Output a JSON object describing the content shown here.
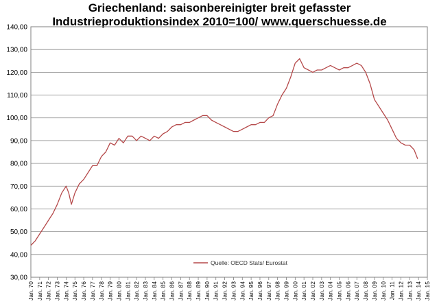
{
  "chart_data": {
    "type": "line",
    "title": [
      "Griechenland: saisonbereinigter  breit gefasster",
      "Industrieproduktionsindex  2010=100/  www.querschuesse.de"
    ],
    "ylim": [
      30,
      140
    ],
    "y_ticks": [
      "30,00",
      "40,00",
      "50,00",
      "60,00",
      "70,00",
      "80,00",
      "90,00",
      "100,00",
      "110,00",
      "120,00",
      "130,00",
      "140,00"
    ],
    "x_ticks": [
      "Jan. 70",
      "Jan. 71",
      "Jan. 72",
      "Jan. 73",
      "Jan. 74",
      "Jan. 75",
      "Jan. 76",
      "Jan. 77",
      "Jan. 78",
      "Jan. 79",
      "Jan. 80",
      "Jan. 81",
      "Jan. 82",
      "Jan. 83",
      "Jan. 84",
      "Jan. 85",
      "Jan. 86",
      "Jan. 87",
      "Jan. 88",
      "Jan. 89",
      "Jan. 90",
      "Jan. 91",
      "Jan. 92",
      "Jan. 93",
      "Jan. 94",
      "Jan. 95",
      "Jan. 96",
      "Jan. 97",
      "Jan. 98",
      "Jan. 99",
      "Jan. 00",
      "Jan. 01",
      "Jan. 02",
      "Jan. 03",
      "Jan. 04",
      "Jan. 05",
      "Jan. 06",
      "Jan. 07",
      "Jan. 08",
      "Jan. 09",
      "Jan. 10",
      "Jan. 11",
      "Jan. 12",
      "Jan. 13",
      "Jan. 14",
      "Jan. 15"
    ],
    "grid": true,
    "legend_placement": "bottom-center",
    "series": [
      {
        "name": "Quelle: OECD Stats/ Eurostat",
        "color": "#b5494a",
        "x": [
          1970.0,
          1970.5,
          1971.0,
          1971.5,
          1972.0,
          1972.5,
          1973.0,
          1973.5,
          1974.0,
          1974.3,
          1974.6,
          1975.0,
          1975.5,
          1976.0,
          1976.5,
          1977.0,
          1977.5,
          1978.0,
          1978.5,
          1979.0,
          1979.5,
          1980.0,
          1980.5,
          1981.0,
          1981.5,
          1982.0,
          1982.5,
          1983.0,
          1983.5,
          1984.0,
          1984.5,
          1985.0,
          1985.5,
          1986.0,
          1986.5,
          1987.0,
          1987.5,
          1988.0,
          1988.5,
          1989.0,
          1989.5,
          1990.0,
          1990.5,
          1991.0,
          1991.5,
          1992.0,
          1992.5,
          1993.0,
          1993.5,
          1994.0,
          1994.5,
          1995.0,
          1995.5,
          1996.0,
          1996.5,
          1997.0,
          1997.5,
          1998.0,
          1998.5,
          1999.0,
          1999.5,
          2000.0,
          2000.5,
          2001.0,
          2001.5,
          2002.0,
          2002.5,
          2003.0,
          2003.5,
          2004.0,
          2004.5,
          2005.0,
          2005.5,
          2006.0,
          2006.5,
          2007.0,
          2007.5,
          2008.0,
          2008.5,
          2009.0,
          2009.5,
          2010.0,
          2010.5,
          2011.0,
          2011.5,
          2012.0,
          2012.5,
          2013.0,
          2013.5,
          2013.9
        ],
        "values": [
          44,
          46,
          49,
          52,
          55,
          58,
          62,
          67,
          70,
          67,
          62,
          67,
          71,
          73,
          76,
          79,
          79,
          83,
          85,
          89,
          88,
          91,
          89,
          92,
          92,
          90,
          92,
          91,
          90,
          92,
          91,
          93,
          94,
          96,
          97,
          97,
          98,
          98,
          99,
          100,
          101,
          101,
          99,
          98,
          97,
          96,
          95,
          94,
          94,
          95,
          96,
          97,
          97,
          98,
          98,
          100,
          101,
          106,
          110,
          113,
          118,
          124,
          126,
          122,
          121,
          120,
          121,
          121,
          122,
          123,
          122,
          121,
          122,
          122,
          123,
          124,
          123,
          120,
          115,
          108,
          105,
          102,
          99,
          95,
          91,
          89,
          88,
          88,
          86,
          82
        ]
      }
    ]
  }
}
